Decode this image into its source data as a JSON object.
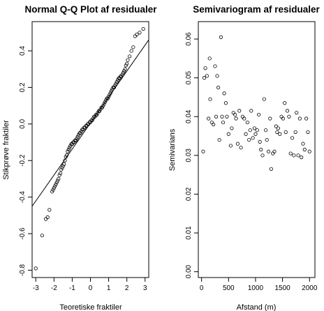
{
  "chart_data": [
    {
      "type": "scatter",
      "title": "Normal Q-Q Plot af residualer",
      "xlabel": "Teoretiske fraktiler",
      "ylabel": "Stikprøve fraktiler",
      "xlim": [
        -3.2,
        3.2
      ],
      "ylim": [
        -0.84,
        0.56
      ],
      "x_ticks": [
        -3,
        -2,
        -1,
        0,
        1,
        2,
        3
      ],
      "y_ticks": [
        -0.8,
        -0.6,
        -0.4,
        -0.2,
        0.0,
        0.2,
        0.4
      ],
      "x_tick_labels": [
        "-3",
        "-2",
        "-1",
        "0",
        "1",
        "2",
        "3"
      ],
      "y_tick_labels": [
        "-0.8",
        "-0.6",
        "-0.4",
        "-0.2",
        "0.0",
        "0.2",
        "0.4"
      ],
      "reference_line": [
        [
          -3.2,
          -0.45
        ],
        [
          3.2,
          0.46
        ]
      ],
      "points": [
        [
          -3.0,
          -0.79
        ],
        [
          -2.65,
          -0.61
        ],
        [
          -2.45,
          -0.52
        ],
        [
          -2.35,
          -0.51
        ],
        [
          -2.25,
          -0.47
        ],
        [
          -2.1,
          -0.37
        ],
        [
          -2.05,
          -0.36
        ],
        [
          -2.0,
          -0.35
        ],
        [
          -1.95,
          -0.34
        ],
        [
          -1.9,
          -0.33
        ],
        [
          -1.85,
          -0.32
        ],
        [
          -1.8,
          -0.31
        ],
        [
          -1.75,
          -0.3
        ],
        [
          -1.7,
          -0.28
        ],
        [
          -1.65,
          -0.27
        ],
        [
          -1.6,
          -0.25
        ],
        [
          -1.55,
          -0.24
        ],
        [
          -1.5,
          -0.23
        ],
        [
          -1.45,
          -0.22
        ],
        [
          -1.4,
          -0.2
        ],
        [
          -1.35,
          -0.18
        ],
        [
          -1.3,
          -0.17
        ],
        [
          -1.25,
          -0.15
        ],
        [
          -1.2,
          -0.14
        ],
        [
          -1.15,
          -0.13
        ],
        [
          -1.1,
          -0.12
        ],
        [
          -1.05,
          -0.11
        ],
        [
          -1.0,
          -0.11
        ],
        [
          -0.95,
          -0.1
        ],
        [
          -0.9,
          -0.1
        ],
        [
          -0.85,
          -0.09
        ],
        [
          -0.8,
          -0.09
        ],
        [
          -0.75,
          -0.08
        ],
        [
          -0.7,
          -0.07
        ],
        [
          -0.65,
          -0.06
        ],
        [
          -0.6,
          -0.05
        ],
        [
          -0.55,
          -0.05
        ],
        [
          -0.5,
          -0.04
        ],
        [
          -0.45,
          -0.03
        ],
        [
          -0.4,
          -0.03
        ],
        [
          -0.35,
          -0.02
        ],
        [
          -0.3,
          -0.02
        ],
        [
          -0.25,
          -0.01
        ],
        [
          -0.2,
          -0.01
        ],
        [
          -0.15,
          0.0
        ],
        [
          -0.1,
          0.0
        ],
        [
          -0.05,
          0.01
        ],
        [
          0.0,
          0.01
        ],
        [
          0.05,
          0.02
        ],
        [
          0.1,
          0.02
        ],
        [
          0.15,
          0.03
        ],
        [
          0.2,
          0.04
        ],
        [
          0.25,
          0.04
        ],
        [
          0.3,
          0.05
        ],
        [
          0.35,
          0.05
        ],
        [
          0.4,
          0.06
        ],
        [
          0.45,
          0.07
        ],
        [
          0.5,
          0.07
        ],
        [
          0.55,
          0.08
        ],
        [
          0.6,
          0.09
        ],
        [
          0.65,
          0.09
        ],
        [
          0.7,
          0.1
        ],
        [
          0.75,
          0.11
        ],
        [
          0.8,
          0.12
        ],
        [
          0.85,
          0.13
        ],
        [
          0.9,
          0.14
        ],
        [
          0.95,
          0.14
        ],
        [
          1.0,
          0.15
        ],
        [
          1.05,
          0.16
        ],
        [
          1.1,
          0.17
        ],
        [
          1.15,
          0.18
        ],
        [
          1.2,
          0.19
        ],
        [
          1.25,
          0.2
        ],
        [
          1.3,
          0.2
        ],
        [
          1.35,
          0.21
        ],
        [
          1.4,
          0.22
        ],
        [
          1.45,
          0.23
        ],
        [
          1.5,
          0.24
        ],
        [
          1.55,
          0.25
        ],
        [
          1.6,
          0.25
        ],
        [
          1.65,
          0.26
        ],
        [
          1.7,
          0.26
        ],
        [
          1.75,
          0.27
        ],
        [
          1.8,
          0.28
        ],
        [
          1.85,
          0.29
        ],
        [
          1.9,
          0.3
        ],
        [
          1.95,
          0.32
        ],
        [
          2.0,
          0.33
        ],
        [
          2.05,
          0.35
        ],
        [
          2.15,
          0.37
        ],
        [
          2.25,
          0.4
        ],
        [
          2.35,
          0.42
        ],
        [
          2.45,
          0.48
        ],
        [
          2.55,
          0.49
        ],
        [
          2.7,
          0.5
        ],
        [
          2.9,
          0.52
        ]
      ]
    },
    {
      "type": "scatter",
      "title": "Semivariogram af residualer",
      "xlabel": "Afstand (m)",
      "ylabel": "Semivarians",
      "xlim": [
        -60,
        2100
      ],
      "ylim": [
        -0.0015,
        0.0645
      ],
      "x_ticks": [
        0,
        500,
        1000,
        1500,
        2000
      ],
      "y_ticks": [
        0.0,
        0.01,
        0.02,
        0.03,
        0.04,
        0.05,
        0.06
      ],
      "x_tick_labels": [
        "0",
        "500",
        "1000",
        "1500",
        "2000"
      ],
      "y_tick_labels": [
        "0.00",
        "0.01",
        "0.02",
        "0.03",
        "0.04",
        "0.05",
        "0.06"
      ],
      "points": [
        [
          30,
          0.031
        ],
        [
          50,
          0.05
        ],
        [
          70,
          0.0525
        ],
        [
          100,
          0.0505
        ],
        [
          130,
          0.0395
        ],
        [
          150,
          0.055
        ],
        [
          160,
          0.0445
        ],
        [
          190,
          0.0385
        ],
        [
          220,
          0.038
        ],
        [
          250,
          0.053
        ],
        [
          270,
          0.04
        ],
        [
          290,
          0.0505
        ],
        [
          310,
          0.0475
        ],
        [
          330,
          0.034
        ],
        [
          360,
          0.0605
        ],
        [
          380,
          0.04
        ],
        [
          400,
          0.0385
        ],
        [
          420,
          0.046
        ],
        [
          450,
          0.0435
        ],
        [
          470,
          0.04
        ],
        [
          500,
          0.0355
        ],
        [
          540,
          0.0325
        ],
        [
          560,
          0.037
        ],
        [
          590,
          0.041
        ],
        [
          620,
          0.0405
        ],
        [
          640,
          0.0395
        ],
        [
          670,
          0.033
        ],
        [
          700,
          0.0415
        ],
        [
          730,
          0.032
        ],
        [
          760,
          0.04
        ],
        [
          790,
          0.0395
        ],
        [
          820,
          0.0355
        ],
        [
          850,
          0.0385
        ],
        [
          880,
          0.034
        ],
        [
          900,
          0.0365
        ],
        [
          920,
          0.0415
        ],
        [
          950,
          0.0345
        ],
        [
          980,
          0.037
        ],
        [
          1000,
          0.0355
        ],
        [
          1030,
          0.0365
        ],
        [
          1060,
          0.0405
        ],
        [
          1080,
          0.0335
        ],
        [
          1100,
          0.0315
        ],
        [
          1130,
          0.03
        ],
        [
          1160,
          0.0445
        ],
        [
          1190,
          0.0365
        ],
        [
          1210,
          0.034
        ],
        [
          1240,
          0.031
        ],
        [
          1270,
          0.0395
        ],
        [
          1290,
          0.0265
        ],
        [
          1320,
          0.0305
        ],
        [
          1350,
          0.031
        ],
        [
          1380,
          0.0375
        ],
        [
          1400,
          0.036
        ],
        [
          1420,
          0.037
        ],
        [
          1450,
          0.0355
        ],
        [
          1480,
          0.04
        ],
        [
          1510,
          0.0395
        ],
        [
          1540,
          0.0435
        ],
        [
          1560,
          0.036
        ],
        [
          1590,
          0.0415
        ],
        [
          1620,
          0.04
        ],
        [
          1650,
          0.0305
        ],
        [
          1680,
          0.0345
        ],
        [
          1710,
          0.03
        ],
        [
          1740,
          0.036
        ],
        [
          1760,
          0.041
        ],
        [
          1790,
          0.03
        ],
        [
          1820,
          0.0395
        ],
        [
          1850,
          0.0295
        ],
        [
          1880,
          0.033
        ],
        [
          1910,
          0.0315
        ],
        [
          1940,
          0.0395
        ],
        [
          1970,
          0.036
        ],
        [
          2000,
          0.031
        ]
      ]
    }
  ]
}
